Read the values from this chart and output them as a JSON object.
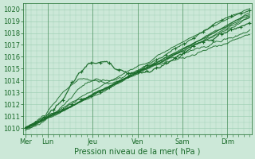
{
  "xlabel": "Pression niveau de la mer( hPa )",
  "ylim": [
    1009.5,
    1020.5
  ],
  "yticks": [
    1010,
    1011,
    1012,
    1013,
    1014,
    1015,
    1016,
    1017,
    1018,
    1019,
    1020
  ],
  "day_labels": [
    "Mer",
    "Lun",
    "Jeu",
    "Ven",
    "Sam",
    "Dim"
  ],
  "day_positions": [
    0,
    24,
    72,
    120,
    168,
    216
  ],
  "xlim": [
    -2,
    242
  ],
  "bg_color": "#cce8d8",
  "grid_color": "#99ccb0",
  "line_color": "#1a6b2a",
  "text_color": "#1a6b2a",
  "figsize": [
    3.2,
    2.0
  ],
  "dpi": 100
}
